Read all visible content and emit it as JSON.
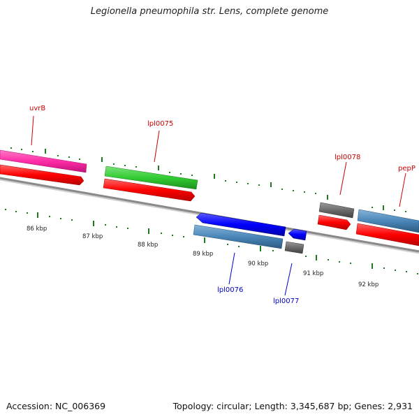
{
  "title": "Legionella pneumophila str. Lens, complete genome",
  "footer": {
    "accession": "Accession: NC_006369",
    "topology": "Topology: circular; Length: 3,345,687 bp; Genes: 2,931"
  },
  "colors": {
    "background": "#ffffff",
    "backbone": "#8a8a8a",
    "tick": "#1f7a1f",
    "cds": "#ff0000",
    "forward_label": "#cc0000",
    "reverse_label": "#0000cc",
    "magenta": "#ff2ca6",
    "green": "#33cc33",
    "gray": "#6b6b6b",
    "steel": "#4a86b8",
    "blue": "#0000ff"
  },
  "genes": [
    {
      "name": "uvrB"
    },
    {
      "name": "lpl0075"
    },
    {
      "name": "lpl0078"
    },
    {
      "name": "pepP"
    },
    {
      "name": "lpl0076"
    },
    {
      "name": "lpl0077"
    }
  ],
  "kbp_labels": [
    "86 kbp",
    "87 kbp",
    "88 kbp",
    "89 kbp",
    "90 kbp",
    "91 kbp",
    "92 kbp"
  ]
}
